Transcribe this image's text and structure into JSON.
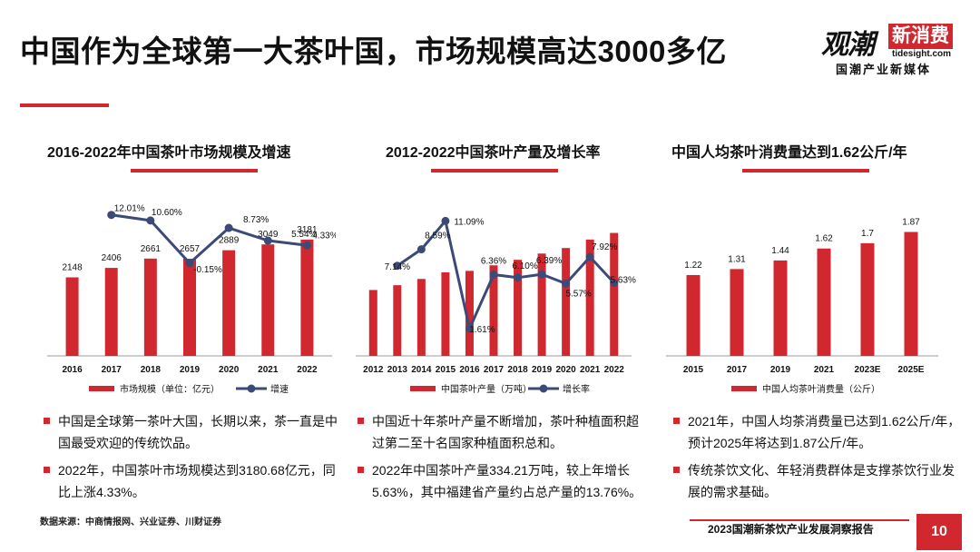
{
  "page": {
    "title": "中国作为全球第一大茶叶国，市场规模高达3000多亿",
    "logo_main": "观潮",
    "logo_badge": "新消费",
    "logo_url": "tidesight.com",
    "logo_sub": "国潮产业新媒体",
    "source": "数据来源：中商情报网、兴业证券、川财证券",
    "report_name": "2023国潮新茶饮产业发展洞察报告",
    "page_number": "10"
  },
  "colors": {
    "accent": "#d0282e",
    "line": "#3c4a78"
  },
  "panels": [
    {
      "title": "2016-2022年中国茶叶市场规模及增速",
      "bullets": [
        "中国是全球第一茶叶大国，长期以来，茶一直是中国最受欢迎的传统饮品。",
        "2022年，中国茶叶市场规模达到3180.68亿元，同比上涨4.33%。"
      ]
    },
    {
      "title": "2012-2022中国茶叶产量及增长率",
      "bullets": [
        "中国近十年茶叶产量不断增加，茶叶种植面积超过第二至十名国家种植面积总和。",
        "2022年中国茶叶产量334.21万吨，较上年增长5.63%，其中福建省产量约占总产量的13.76%。"
      ]
    },
    {
      "title": "中国人均茶叶消费量达到1.62公斤/年",
      "bullets": [
        "2021年，中国人均茶消费量已达到1.62公斤/年，预计2025年将达到1.87公斤/年。",
        "传统茶饮文化、年轻消费群体是支撑茶饮行业发展的需求基础。"
      ]
    }
  ],
  "chart_data": [
    {
      "type": "bar+line",
      "title": "2016-2022年中国茶叶市场规模及增速",
      "categories": [
        "2016",
        "2017",
        "2018",
        "2019",
        "2020",
        "2021",
        "2022"
      ],
      "series": [
        {
          "name": "市场规模（单位：亿元）",
          "kind": "bar",
          "values": [
            2148,
            2406,
            2661,
            2657,
            2889,
            3049,
            3181
          ],
          "labels": [
            "2148",
            "2406",
            "2661",
            "2657",
            "2889",
            "3049",
            "3181"
          ]
        },
        {
          "name": "增速",
          "kind": "line",
          "values": [
            null,
            12.01,
            10.6,
            -0.15,
            8.73,
            5.54,
            4.33
          ],
          "labels": [
            "",
            "12.01%",
            "10.60%",
            "-0.15%",
            "8.73%",
            "5.54%",
            "4.33%"
          ]
        }
      ]
    },
    {
      "type": "bar+line",
      "title": "2012-2022中国茶叶产量及增长率",
      "categories": [
        "2012",
        "2013",
        "2014",
        "2015",
        "2016",
        "2017",
        "2018",
        "2019",
        "2020",
        "2021",
        "2022"
      ],
      "series": [
        {
          "name": "中国茶叶产量（万吨）",
          "kind": "bar",
          "values": [
            179,
            192,
            209,
            227,
            231,
            246,
            261,
            278,
            293,
            316,
            334
          ]
        },
        {
          "name": "增长率",
          "kind": "line",
          "values": [
            null,
            7.14,
            8.59,
            11.09,
            1.61,
            6.36,
            6.1,
            6.39,
            5.57,
            7.92,
            5.63
          ],
          "labels": [
            "",
            "7.14%",
            "8.59%",
            "11.09%",
            "1.61%",
            "6.36%",
            "6.10%",
            "6.39%",
            "5.57%",
            "7.92%",
            "5.63%"
          ]
        }
      ]
    },
    {
      "type": "bar",
      "title": "中国人均茶叶消费量达到1.62公斤/年",
      "categories": [
        "2015",
        "2017",
        "2019",
        "2021",
        "2023E",
        "2025E"
      ],
      "series": [
        {
          "name": "中国人均茶叶消费量（公斤）",
          "kind": "bar",
          "values": [
            1.22,
            1.31,
            1.44,
            1.62,
            1.7,
            1.87
          ],
          "labels": [
            "1.22",
            "1.31",
            "1.44",
            "1.62",
            "1.7",
            "1.87"
          ]
        }
      ]
    }
  ]
}
